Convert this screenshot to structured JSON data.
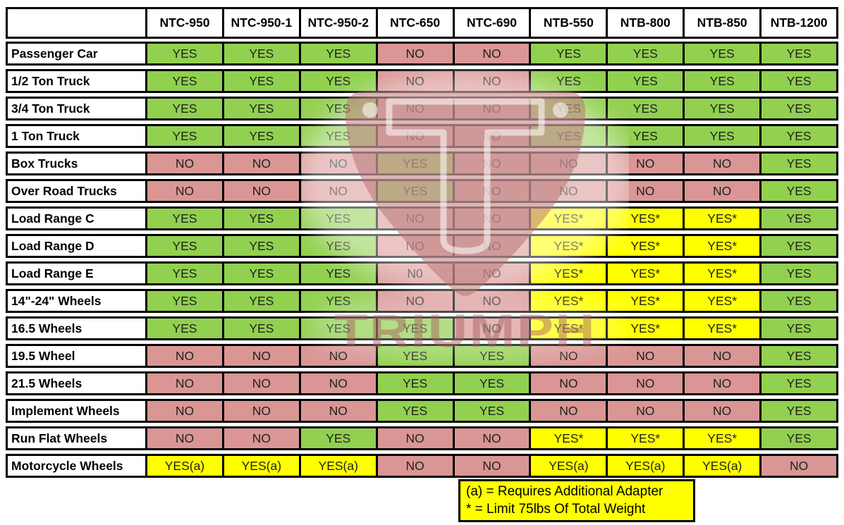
{
  "chart_data": {
    "type": "table",
    "columns": [
      "NTC-950",
      "NTC-950-1",
      "NTC-950-2",
      "NTC-650",
      "NTC-690",
      "NTB-550",
      "NTB-800",
      "NTB-850",
      "NTB-1200"
    ],
    "rows": [
      {
        "label": "Passenger Car",
        "values": [
          "YES",
          "YES",
          "YES",
          "NO",
          "NO",
          "YES",
          "YES",
          "YES",
          "YES"
        ]
      },
      {
        "label": "1/2 Ton Truck",
        "values": [
          "YES",
          "YES",
          "YES",
          "NO",
          "NO",
          "YES",
          "YES",
          "YES",
          "YES"
        ]
      },
      {
        "label": "3/4 Ton Truck",
        "values": [
          "YES",
          "YES",
          "YES",
          "NO",
          "NO",
          "YES",
          "YES",
          "YES",
          "YES"
        ]
      },
      {
        "label": "1 Ton Truck",
        "values": [
          "YES",
          "YES",
          "YES",
          "NO",
          "NO",
          "YES",
          "YES",
          "YES",
          "YES"
        ]
      },
      {
        "label": "Box Trucks",
        "values": [
          "NO",
          "NO",
          "NO",
          "YES",
          "NO",
          "NO",
          "NO",
          "NO",
          "YES"
        ]
      },
      {
        "label": "Over Road Trucks",
        "values": [
          "NO",
          "NO",
          "NO",
          "YES",
          "NO",
          "NO",
          "NO",
          "NO",
          "YES"
        ]
      },
      {
        "label": "Load Range C",
        "values": [
          "YES",
          "YES",
          "YES",
          "NO",
          "NO",
          "YES*",
          "YES*",
          "YES*",
          "YES"
        ]
      },
      {
        "label": "Load Range D",
        "values": [
          "YES",
          "YES",
          "YES",
          "NO",
          "NO",
          "YES*",
          "YES*",
          "YES*",
          "YES"
        ]
      },
      {
        "label": "Load Range E",
        "values": [
          "YES",
          "YES",
          "YES",
          "N0",
          "NO",
          "YES*",
          "YES*",
          "YES*",
          "YES"
        ]
      },
      {
        "label": "14\"-24\" Wheels",
        "values": [
          "YES",
          "YES",
          "YES",
          "NO",
          "NO",
          "YES*",
          "YES*",
          "YES*",
          "YES"
        ]
      },
      {
        "label": "16.5 Wheels",
        "values": [
          "YES",
          "YES",
          "YES",
          "YES",
          "NO",
          "YES*",
          "YES*",
          "YES*",
          "YES"
        ]
      },
      {
        "label": "19.5 Wheel",
        "values": [
          "NO",
          "NO",
          "NO",
          "YES",
          "YES",
          "NO",
          "NO",
          "NO",
          "YES"
        ]
      },
      {
        "label": "21.5 Wheels",
        "values": [
          "NO",
          "NO",
          "NO",
          "YES",
          "YES",
          "NO",
          "NO",
          "NO",
          "YES"
        ]
      },
      {
        "label": "Implement Wheels",
        "values": [
          "NO",
          "NO",
          "NO",
          "YES",
          "YES",
          "NO",
          "NO",
          "NO",
          "YES"
        ]
      },
      {
        "label": "Run Flat Wheels",
        "values": [
          "NO",
          "NO",
          "YES",
          "NO",
          "NO",
          "YES*",
          "YES*",
          "YES*",
          "YES"
        ]
      },
      {
        "label": "Motorcycle Wheels",
        "values": [
          "YES(a)",
          "YES(a)",
          "YES(a)",
          "NO",
          "NO",
          "YES(a)",
          "YES(a)",
          "YES(a)",
          "NO"
        ]
      }
    ],
    "legend": [
      "(a) = Requires Additional Adapter",
      "* = Limit 75lbs Of Total Weight"
    ],
    "layout_hints": {
      "grid": "on",
      "legend_position": "bottom-center"
    }
  },
  "colors": {
    "yes_cell": "#92D050",
    "no_cell": "#D99694",
    "special_cell": "#FFFF00",
    "border": "#000000"
  },
  "watermark": {
    "text": "TRIUMPH"
  }
}
